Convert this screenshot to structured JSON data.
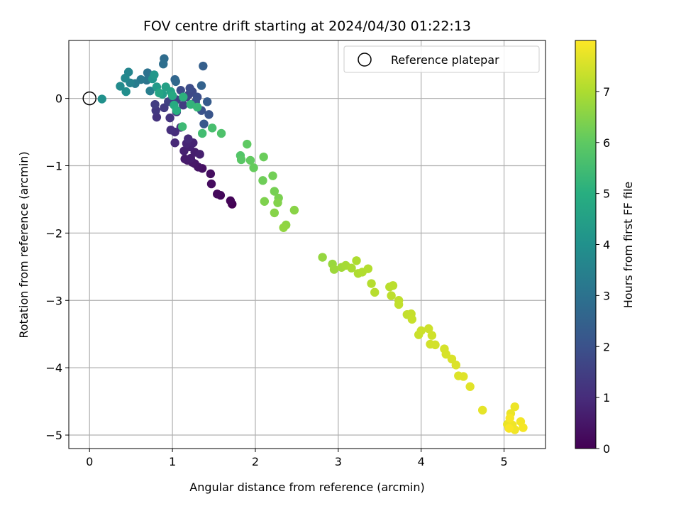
{
  "chart_data": {
    "type": "scatter",
    "title": "FOV centre drift starting at 2024/04/30 01:22:13",
    "xlabel": "Angular distance from reference (arcmin)",
    "ylabel": "Rotation from reference (arcmin)",
    "xlim": [
      -0.25,
      5.5
    ],
    "ylim": [
      -5.2,
      0.86
    ],
    "x_ticks": [
      0,
      1,
      2,
      3,
      4,
      5
    ],
    "y_ticks": [
      0,
      -1,
      -2,
      -3,
      -4,
      -5
    ],
    "x_tick_labels": [
      "0",
      "1",
      "2",
      "3",
      "4",
      "5"
    ],
    "y_tick_labels": [
      "0",
      "−1",
      "−2",
      "−3",
      "−4",
      "−5"
    ],
    "grid": true,
    "legend": {
      "placement": "top-right",
      "entries": [
        "Reference platepar"
      ]
    },
    "reference_point": {
      "x": 0,
      "y": 0
    },
    "colorbar": {
      "label": "Hours from first FF file",
      "colormap": "viridis",
      "range": [
        0,
        8
      ],
      "ticks": [
        0,
        1,
        2,
        3,
        4,
        5,
        6,
        7
      ],
      "tick_labels": [
        "0",
        "1",
        "2",
        "3",
        "4",
        "5",
        "6",
        "7"
      ]
    },
    "series": [
      {
        "points": [
          {
            "x": 1.72,
            "y": -1.57,
            "t": 0.0
          },
          {
            "x": 1.7,
            "y": -1.52,
            "t": 0.1
          },
          {
            "x": 1.58,
            "y": -1.44,
            "t": 0.15
          },
          {
            "x": 1.54,
            "y": -1.42,
            "t": 0.2
          },
          {
            "x": 1.47,
            "y": -1.27,
            "t": 0.25
          },
          {
            "x": 1.46,
            "y": -1.12,
            "t": 0.3
          },
          {
            "x": 1.36,
            "y": -1.04,
            "t": 0.35
          },
          {
            "x": 1.31,
            "y": -1.02,
            "t": 0.4
          },
          {
            "x": 1.27,
            "y": -0.97,
            "t": 0.45
          },
          {
            "x": 1.24,
            "y": -0.95,
            "t": 0.5
          },
          {
            "x": 1.18,
            "y": -0.92,
            "t": 0.55
          },
          {
            "x": 1.15,
            "y": -0.9,
            "t": 0.6
          },
          {
            "x": 1.22,
            "y": -0.89,
            "t": 0.62
          },
          {
            "x": 1.27,
            "y": -0.8,
            "t": 0.65
          },
          {
            "x": 1.33,
            "y": -0.83,
            "t": 0.7
          },
          {
            "x": 1.14,
            "y": -0.78,
            "t": 0.72
          },
          {
            "x": 1.21,
            "y": -0.72,
            "t": 0.75
          },
          {
            "x": 1.25,
            "y": -0.66,
            "t": 0.8
          },
          {
            "x": 1.17,
            "y": -0.67,
            "t": 0.85
          },
          {
            "x": 1.03,
            "y": -0.66,
            "t": 0.9
          },
          {
            "x": 1.19,
            "y": -0.6,
            "t": 0.95
          },
          {
            "x": 1.03,
            "y": -0.5,
            "t": 1.0
          },
          {
            "x": 0.98,
            "y": -0.47,
            "t": 1.05
          },
          {
            "x": 1.1,
            "y": -0.43,
            "t": 1.1
          },
          {
            "x": 0.81,
            "y": -0.28,
            "t": 1.15
          },
          {
            "x": 0.97,
            "y": -0.29,
            "t": 1.2
          },
          {
            "x": 1.05,
            "y": -0.2,
            "t": 1.25
          },
          {
            "x": 0.8,
            "y": -0.18,
            "t": 1.3
          },
          {
            "x": 0.9,
            "y": -0.14,
            "t": 1.35
          },
          {
            "x": 1.13,
            "y": -0.1,
            "t": 1.4
          },
          {
            "x": 0.79,
            "y": -0.09,
            "t": 1.45
          },
          {
            "x": 0.95,
            "y": -0.05,
            "t": 1.5
          },
          {
            "x": 1.05,
            "y": -0.02,
            "t": 1.55
          },
          {
            "x": 1.17,
            "y": 0.02,
            "t": 1.6
          },
          {
            "x": 1.27,
            "y": -0.09,
            "t": 1.65
          },
          {
            "x": 1.2,
            "y": 0.06,
            "t": 1.7
          },
          {
            "x": 1.24,
            "y": 0.1,
            "t": 1.75
          },
          {
            "x": 1.1,
            "y": 0.12,
            "t": 1.8
          },
          {
            "x": 1.21,
            "y": 0.15,
            "t": 1.85
          },
          {
            "x": 1.3,
            "y": 0.02,
            "t": 1.9
          },
          {
            "x": 1.28,
            "y": -0.05,
            "t": 1.95
          },
          {
            "x": 1.35,
            "y": -0.18,
            "t": 2.0
          },
          {
            "x": 1.44,
            "y": -0.24,
            "t": 2.1
          },
          {
            "x": 1.38,
            "y": -0.38,
            "t": 2.2
          },
          {
            "x": 1.42,
            "y": -0.05,
            "t": 2.3
          },
          {
            "x": 1.37,
            "y": 0.48,
            "t": 2.4
          },
          {
            "x": 1.35,
            "y": 0.19,
            "t": 2.5
          },
          {
            "x": 1.03,
            "y": 0.28,
            "t": 2.6
          },
          {
            "x": 1.04,
            "y": 0.25,
            "t": 2.7
          },
          {
            "x": 0.9,
            "y": 0.59,
            "t": 2.8
          },
          {
            "x": 0.89,
            "y": 0.51,
            "t": 2.9
          },
          {
            "x": 0.7,
            "y": 0.38,
            "t": 3.0
          },
          {
            "x": 0.69,
            "y": 0.27,
            "t": 3.1
          },
          {
            "x": 0.62,
            "y": 0.28,
            "t": 3.2
          },
          {
            "x": 0.55,
            "y": 0.22,
            "t": 3.3
          },
          {
            "x": 0.73,
            "y": 0.11,
            "t": 3.4
          },
          {
            "x": 0.49,
            "y": 0.23,
            "t": 3.5
          },
          {
            "x": 0.47,
            "y": 0.39,
            "t": 3.6
          },
          {
            "x": 0.43,
            "y": 0.3,
            "t": 3.7
          },
          {
            "x": 0.37,
            "y": 0.18,
            "t": 3.8
          },
          {
            "x": 0.44,
            "y": 0.1,
            "t": 3.9
          },
          {
            "x": 0.15,
            "y": -0.01,
            "t": 4.0
          },
          {
            "x": 0.76,
            "y": 0.29,
            "t": 4.1
          },
          {
            "x": 0.78,
            "y": 0.35,
            "t": 4.2
          },
          {
            "x": 0.81,
            "y": 0.17,
            "t": 4.3
          },
          {
            "x": 0.88,
            "y": 0.06,
            "t": 4.4
          },
          {
            "x": 0.92,
            "y": 0.17,
            "t": 4.5
          },
          {
            "x": 0.98,
            "y": 0.1,
            "t": 4.6
          },
          {
            "x": 0.84,
            "y": 0.08,
            "t": 4.7
          },
          {
            "x": 1.0,
            "y": 0.04,
            "t": 4.8
          },
          {
            "x": 1.02,
            "y": -0.1,
            "t": 4.9
          },
          {
            "x": 1.05,
            "y": -0.18,
            "t": 5.0
          },
          {
            "x": 1.13,
            "y": 0.02,
            "t": 5.1
          },
          {
            "x": 1.22,
            "y": -0.09,
            "t": 5.2
          },
          {
            "x": 1.3,
            "y": -0.13,
            "t": 5.3
          },
          {
            "x": 1.12,
            "y": -0.42,
            "t": 5.4
          },
          {
            "x": 1.36,
            "y": -0.52,
            "t": 5.5
          },
          {
            "x": 1.48,
            "y": -0.44,
            "t": 5.6
          },
          {
            "x": 1.59,
            "y": -0.52,
            "t": 5.7
          },
          {
            "x": 1.82,
            "y": -0.85,
            "t": 5.8
          },
          {
            "x": 1.83,
            "y": -0.91,
            "t": 5.9
          },
          {
            "x": 1.9,
            "y": -0.68,
            "t": 6.0
          },
          {
            "x": 1.94,
            "y": -0.92,
            "t": 6.05
          },
          {
            "x": 1.98,
            "y": -1.03,
            "t": 6.1
          },
          {
            "x": 2.1,
            "y": -0.87,
            "t": 6.15
          },
          {
            "x": 2.09,
            "y": -1.22,
            "t": 6.2
          },
          {
            "x": 2.21,
            "y": -1.15,
            "t": 6.25
          },
          {
            "x": 2.23,
            "y": -1.38,
            "t": 6.3
          },
          {
            "x": 2.28,
            "y": -1.48,
            "t": 6.35
          },
          {
            "x": 2.11,
            "y": -1.53,
            "t": 6.4
          },
          {
            "x": 2.27,
            "y": -1.55,
            "t": 6.45
          },
          {
            "x": 2.23,
            "y": -1.7,
            "t": 6.5
          },
          {
            "x": 2.47,
            "y": -1.66,
            "t": 6.55
          },
          {
            "x": 2.37,
            "y": -1.88,
            "t": 6.6
          },
          {
            "x": 2.34,
            "y": -1.92,
            "t": 6.65
          },
          {
            "x": 2.81,
            "y": -2.36,
            "t": 6.7
          },
          {
            "x": 2.93,
            "y": -2.46,
            "t": 6.75
          },
          {
            "x": 2.95,
            "y": -2.54,
            "t": 6.8
          },
          {
            "x": 3.04,
            "y": -2.51,
            "t": 6.85
          },
          {
            "x": 3.09,
            "y": -2.48,
            "t": 6.9
          },
          {
            "x": 3.16,
            "y": -2.52,
            "t": 6.95
          },
          {
            "x": 3.22,
            "y": -2.41,
            "t": 7.0
          },
          {
            "x": 3.24,
            "y": -2.6,
            "t": 7.02
          },
          {
            "x": 3.29,
            "y": -2.58,
            "t": 7.05
          },
          {
            "x": 3.36,
            "y": -2.53,
            "t": 7.07
          },
          {
            "x": 3.4,
            "y": -2.75,
            "t": 7.1
          },
          {
            "x": 3.44,
            "y": -2.88,
            "t": 7.12
          },
          {
            "x": 3.62,
            "y": -2.8,
            "t": 7.15
          },
          {
            "x": 3.66,
            "y": -2.78,
            "t": 7.17
          },
          {
            "x": 3.64,
            "y": -2.93,
            "t": 7.2
          },
          {
            "x": 3.73,
            "y": -3.0,
            "t": 7.22
          },
          {
            "x": 3.73,
            "y": -3.06,
            "t": 7.25
          },
          {
            "x": 3.83,
            "y": -3.21,
            "t": 7.27
          },
          {
            "x": 3.88,
            "y": -3.2,
            "t": 7.3
          },
          {
            "x": 3.89,
            "y": -3.28,
            "t": 7.32
          },
          {
            "x": 3.97,
            "y": -3.51,
            "t": 7.35
          },
          {
            "x": 4.0,
            "y": -3.45,
            "t": 7.37
          },
          {
            "x": 4.09,
            "y": -3.42,
            "t": 7.4
          },
          {
            "x": 4.13,
            "y": -3.52,
            "t": 7.42
          },
          {
            "x": 4.11,
            "y": -3.65,
            "t": 7.45
          },
          {
            "x": 4.17,
            "y": -3.66,
            "t": 7.47
          },
          {
            "x": 4.28,
            "y": -3.72,
            "t": 7.5
          },
          {
            "x": 4.3,
            "y": -3.8,
            "t": 7.52
          },
          {
            "x": 4.37,
            "y": -3.87,
            "t": 7.55
          },
          {
            "x": 4.42,
            "y": -3.96,
            "t": 7.57
          },
          {
            "x": 4.45,
            "y": -4.12,
            "t": 7.6
          },
          {
            "x": 4.51,
            "y": -4.13,
            "t": 7.62
          },
          {
            "x": 4.59,
            "y": -4.28,
            "t": 7.65
          },
          {
            "x": 4.74,
            "y": -4.63,
            "t": 7.7
          },
          {
            "x": 5.04,
            "y": -4.84,
            "t": 7.75
          },
          {
            "x": 5.08,
            "y": -4.68,
            "t": 7.78
          },
          {
            "x": 5.13,
            "y": -4.58,
            "t": 7.8
          },
          {
            "x": 5.1,
            "y": -4.85,
            "t": 7.82
          },
          {
            "x": 5.13,
            "y": -4.92,
            "t": 7.85
          },
          {
            "x": 5.2,
            "y": -4.8,
            "t": 7.88
          },
          {
            "x": 5.23,
            "y": -4.89,
            "t": 7.9
          },
          {
            "x": 5.07,
            "y": -4.75,
            "t": 7.92
          },
          {
            "x": 5.06,
            "y": -4.9,
            "t": 7.95
          }
        ]
      }
    ]
  }
}
